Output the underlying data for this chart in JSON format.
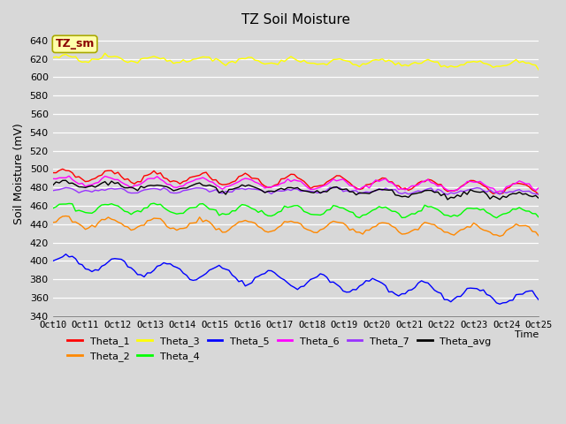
{
  "title": "TZ Soil Moisture",
  "ylabel": "Soil Moisture (mV)",
  "xlabel": "Time",
  "annotation": "TZ_sm",
  "background_color": "#d8d8d8",
  "plot_bg_color": "#d8d8d8",
  "ylim": [
    340,
    650
  ],
  "n_points": 150,
  "series": {
    "Theta_1": {
      "color": "#ff0000",
      "base": 494,
      "trend": -0.1,
      "amp": 6,
      "freq": 0.45
    },
    "Theta_2": {
      "color": "#ff8800",
      "base": 442,
      "trend": -0.06,
      "amp": 6,
      "freq": 0.45
    },
    "Theta_3": {
      "color": "#ffff00",
      "base": 621,
      "trend": -0.05,
      "amp": 3,
      "freq": 0.45
    },
    "Theta_4": {
      "color": "#00ff00",
      "base": 458,
      "trend": -0.04,
      "amp": 5,
      "freq": 0.45
    },
    "Theta_5": {
      "color": "#0000ff",
      "base": 400,
      "trend": -0.28,
      "amp": 8,
      "freq": 0.4
    },
    "Theta_6": {
      "color": "#ff00ff",
      "base": 487,
      "trend": -0.04,
      "amp": 5,
      "freq": 0.45
    },
    "Theta_7": {
      "color": "#9933ff",
      "base": 477,
      "trend": -0.01,
      "amp": 2,
      "freq": 0.45
    },
    "Theta_avg": {
      "color": "#000000",
      "base": 484,
      "trend": -0.09,
      "amp": 3,
      "freq": 0.45
    }
  },
  "x_tick_labels": [
    "Oct 10",
    "Oct 11",
    "Oct 12",
    "Oct 13",
    "Oct 14",
    "Oct 15",
    "Oct 16",
    "Oct 17",
    "Oct 18",
    "Oct 19",
    "Oct 20",
    "Oct 21",
    "Oct 22",
    "Oct 23",
    "Oct 24",
    "Oct 25"
  ],
  "legend_order": [
    "Theta_1",
    "Theta_2",
    "Theta_3",
    "Theta_4",
    "Theta_5",
    "Theta_6",
    "Theta_7",
    "Theta_avg"
  ]
}
